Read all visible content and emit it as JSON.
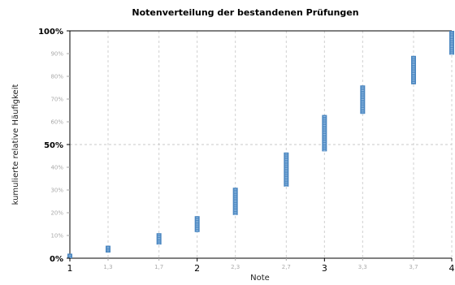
{
  "chart_data": {
    "type": "scatter",
    "title": "Notenverteilung der bestandenen Prüfungen",
    "xlabel": "Note",
    "ylabel": "kumulierte relative Häufigkeit",
    "xlim": [
      1,
      4
    ],
    "ylim": [
      0,
      100
    ],
    "x_ticks": [
      {
        "value": 1,
        "label": "1",
        "major": true
      },
      {
        "value": 1.3,
        "label": "1,3",
        "major": false
      },
      {
        "value": 1.7,
        "label": "1,7",
        "major": false
      },
      {
        "value": 2,
        "label": "2",
        "major": true
      },
      {
        "value": 2.3,
        "label": "2,3",
        "major": false
      },
      {
        "value": 2.7,
        "label": "2,7",
        "major": false
      },
      {
        "value": 3,
        "label": "3",
        "major": true
      },
      {
        "value": 3.3,
        "label": "3,3",
        "major": false
      },
      {
        "value": 3.7,
        "label": "3,7",
        "major": false
      },
      {
        "value": 4,
        "label": "4",
        "major": true
      }
    ],
    "y_ticks": [
      {
        "value": 0,
        "label": "0%",
        "major": true
      },
      {
        "value": 10,
        "label": "10%",
        "major": false
      },
      {
        "value": 20,
        "label": "20%",
        "major": false
      },
      {
        "value": 30,
        "label": "30%",
        "major": false
      },
      {
        "value": 40,
        "label": "40%",
        "major": false
      },
      {
        "value": 50,
        "label": "50%",
        "major": true
      },
      {
        "value": 60,
        "label": "60%",
        "major": false
      },
      {
        "value": 70,
        "label": "70%",
        "major": false
      },
      {
        "value": 80,
        "label": "80%",
        "major": false
      },
      {
        "value": 90,
        "label": "90%",
        "major": false
      },
      {
        "value": 100,
        "label": "100%",
        "major": true
      }
    ],
    "grid": true,
    "highlight_y": 50,
    "point_color": "#4a86c0",
    "segments": [
      {
        "x": 1.0,
        "y_from": 0,
        "y_to": 2
      },
      {
        "x": 1.3,
        "y_from": 2.5,
        "y_to": 5.5
      },
      {
        "x": 1.7,
        "y_from": 6,
        "y_to": 11
      },
      {
        "x": 2.0,
        "y_from": 11.5,
        "y_to": 18.5
      },
      {
        "x": 2.3,
        "y_from": 19,
        "y_to": 31
      },
      {
        "x": 2.7,
        "y_from": 31.5,
        "y_to": 46.5
      },
      {
        "x": 3.0,
        "y_from": 47,
        "y_to": 63
      },
      {
        "x": 3.3,
        "y_from": 63.5,
        "y_to": 76
      },
      {
        "x": 3.7,
        "y_from": 76.5,
        "y_to": 89
      },
      {
        "x": 4.0,
        "y_from": 89.5,
        "y_to": 100
      }
    ]
  }
}
